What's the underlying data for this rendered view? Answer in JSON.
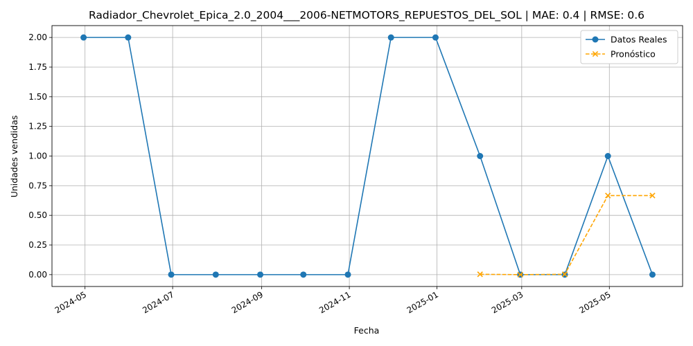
{
  "chart_data": {
    "type": "line",
    "title": "Radiador_Chevrolet_Epica_2.0_2004___2006-NETMOTORS_REPUESTOS_DEL_SOL | MAE: 0.4 | RMSE: 0.6",
    "xlabel": "Fecha",
    "ylabel": "Unidades vendidas",
    "x_ticks": [
      "2024-05",
      "2024-07",
      "2024-09",
      "2024-11",
      "2025-01",
      "2025-03",
      "2025-05"
    ],
    "y_ticks": [
      "0.00",
      "0.25",
      "0.50",
      "0.75",
      "1.00",
      "1.25",
      "1.50",
      "1.75",
      "2.00"
    ],
    "ylim": [
      -0.1,
      2.1
    ],
    "xlim": [
      "2024-04-08",
      "2025-06-21"
    ],
    "grid": true,
    "legend_position": "top-right",
    "series": [
      {
        "name": "Datos Reales",
        "color": "#1f77b4",
        "style": "solid",
        "marker": "circle",
        "x": [
          "2024-04-30",
          "2024-05-31",
          "2024-06-30",
          "2024-07-31",
          "2024-08-31",
          "2024-09-30",
          "2024-10-31",
          "2024-11-30",
          "2024-12-31",
          "2025-01-31",
          "2025-02-28",
          "2025-03-31",
          "2025-04-30",
          "2025-05-31"
        ],
        "values": [
          2,
          2,
          0,
          0,
          0,
          0,
          0,
          2,
          2,
          1,
          0,
          0,
          1,
          0
        ]
      },
      {
        "name": "Pronóstico",
        "color": "#ffa500",
        "style": "dashed",
        "marker": "x",
        "x": [
          "2025-01-31",
          "2025-02-28",
          "2025-03-31",
          "2025-04-30",
          "2025-05-31"
        ],
        "values": [
          0.003,
          0.0,
          0.003,
          0.667,
          0.667
        ]
      }
    ]
  }
}
